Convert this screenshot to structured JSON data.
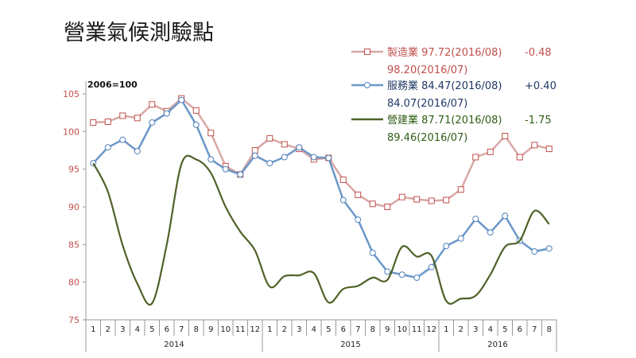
{
  "colors": {
    "manufacturing": "#c0504d",
    "manufacturing_line": "#d8a8a4",
    "services": "#4f81bd",
    "services_line": "#6b97c9",
    "construction": "#4f6228",
    "construction_text": "#2f5d14",
    "services_text": "#1f3864",
    "axis": "#999999",
    "ytick": "#c0504d"
  },
  "chart_data": {
    "type": "line",
    "title": "營業氣候測驗點",
    "base_note": "2006=100",
    "ylim": [
      75,
      105
    ],
    "yticks": [
      75,
      80,
      85,
      90,
      95,
      100,
      105
    ],
    "x_labels": [
      "1",
      "2",
      "3",
      "4",
      "5",
      "6",
      "7",
      "8",
      "9",
      "10",
      "11",
      "12",
      "1",
      "2",
      "3",
      "4",
      "5",
      "6",
      "7",
      "8",
      "9",
      "10",
      "11",
      "12",
      "1",
      "2",
      "3",
      "4",
      "5",
      "6",
      "7",
      "8"
    ],
    "years": [
      {
        "label": "2014",
        "start": 0,
        "count": 12
      },
      {
        "label": "2015",
        "start": 12,
        "count": 12
      },
      {
        "label": "2016",
        "start": 24,
        "count": 8
      }
    ],
    "series": [
      {
        "key": "manufacturing",
        "name": "製造業",
        "marker": "square",
        "smooth": false,
        "values": [
          101.2,
          101.3,
          102.1,
          101.8,
          103.6,
          102.7,
          104.4,
          102.8,
          99.8,
          95.4,
          94.3,
          97.5,
          99.1,
          98.3,
          97.7,
          96.3,
          96.5,
          93.6,
          91.6,
          90.4,
          90.0,
          91.3,
          91.0,
          90.8,
          90.9,
          92.3,
          96.6,
          97.3,
          99.4,
          96.6,
          98.2,
          97.7
        ],
        "legend_line1": "製造業  97.72(2016/08)",
        "legend_change": "-0.48",
        "legend_line2": "98.20(2016/07)"
      },
      {
        "key": "services",
        "name": "服務業",
        "marker": "circle",
        "smooth": false,
        "values": [
          95.8,
          97.9,
          98.9,
          97.4,
          101.2,
          102.4,
          104.2,
          100.9,
          96.3,
          95.0,
          94.3,
          96.8,
          95.8,
          96.6,
          97.9,
          96.6,
          96.5,
          90.9,
          88.3,
          83.9,
          81.4,
          81.0,
          80.6,
          82.0,
          84.8,
          85.8,
          88.4,
          86.6,
          88.8,
          85.5,
          84.07,
          84.47
        ],
        "legend_line1": "服務業  84.47(2016/08)",
        "legend_change": "+0.40",
        "legend_line2": "84.07(2016/07)"
      },
      {
        "key": "construction",
        "name": "營建業",
        "marker": "none",
        "smooth": true,
        "values": [
          95.8,
          92.0,
          84.9,
          79.8,
          77.2,
          85.0,
          95.7,
          96.3,
          94.5,
          90.0,
          86.7,
          84.2,
          79.4,
          80.8,
          80.9,
          81.2,
          77.3,
          79.1,
          79.5,
          80.6,
          80.3,
          84.7,
          83.4,
          83.5,
          77.5,
          77.8,
          78.2,
          81.0,
          84.7,
          85.5,
          89.46,
          87.71
        ],
        "legend_line1": "營建業  87.71(2016/08)",
        "legend_change": "-1.75",
        "legend_line2": "89.46(2016/07)"
      }
    ]
  }
}
